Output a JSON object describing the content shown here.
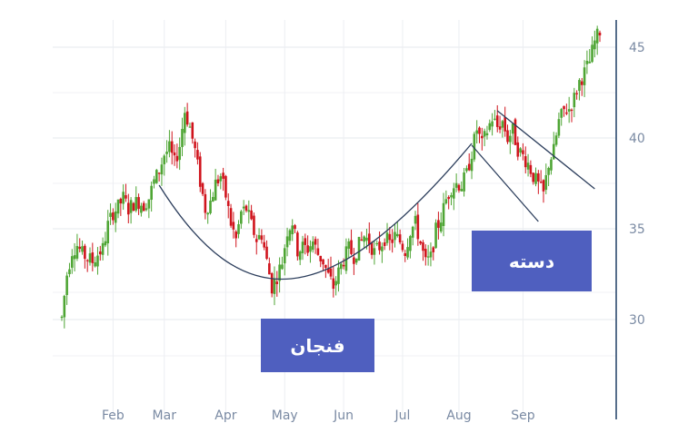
{
  "chart_data": {
    "type": "candlestick",
    "title": "",
    "xlabel": "",
    "ylabel": "",
    "ylim": [
      26,
      46.5
    ],
    "y_ticks": [
      30,
      35,
      40,
      45
    ],
    "x_ticks": [
      "Feb",
      "Mar",
      "Apr",
      "May",
      "Jun",
      "Jul",
      "Aug",
      "Sep"
    ],
    "grid": true,
    "y_axis_side": "right",
    "up_color": "#4ea534",
    "down_color": "#d0141d",
    "close_path": [
      [
        0,
        30.1
      ],
      [
        2,
        32.5
      ],
      [
        4,
        33.8
      ],
      [
        6,
        34.1
      ],
      [
        8,
        33.6
      ],
      [
        10,
        33.4
      ],
      [
        12,
        33.2
      ],
      [
        14,
        33.6
      ],
      [
        16,
        33.9
      ],
      [
        18,
        35.2
      ],
      [
        20,
        35.9
      ],
      [
        22,
        36.2
      ],
      [
        24,
        36.7
      ],
      [
        26,
        36.1
      ],
      [
        28,
        36.4
      ],
      [
        30,
        36.5
      ],
      [
        32,
        36.3
      ],
      [
        34,
        36.7
      ],
      [
        36,
        37.6
      ],
      [
        38,
        38.2
      ],
      [
        40,
        39.1
      ],
      [
        42,
        39.4
      ],
      [
        44,
        38.6
      ],
      [
        46,
        39.6
      ],
      [
        48,
        41.5
      ],
      [
        50,
        40.6
      ],
      [
        52,
        39.3
      ],
      [
        54,
        37.6
      ],
      [
        56,
        36.1
      ],
      [
        58,
        36.5
      ],
      [
        60,
        37.5
      ],
      [
        62,
        37.9
      ],
      [
        64,
        36.8
      ],
      [
        66,
        35.3
      ],
      [
        68,
        34.4
      ],
      [
        70,
        35.9
      ],
      [
        72,
        36.1
      ],
      [
        74,
        35.2
      ],
      [
        76,
        34.4
      ],
      [
        78,
        34.7
      ],
      [
        80,
        33.2
      ],
      [
        82,
        31.8
      ],
      [
        84,
        32.4
      ],
      [
        86,
        33.2
      ],
      [
        88,
        34.9
      ],
      [
        90,
        35.4
      ],
      [
        92,
        33.8
      ],
      [
        94,
        34.0
      ],
      [
        96,
        33.9
      ],
      [
        98,
        34.3
      ],
      [
        100,
        33.6
      ],
      [
        102,
        33.2
      ],
      [
        104,
        32.4
      ],
      [
        106,
        31.8
      ],
      [
        108,
        32.6
      ],
      [
        110,
        33.3
      ],
      [
        112,
        33.9
      ],
      [
        114,
        33.5
      ],
      [
        116,
        34.1
      ],
      [
        118,
        34.6
      ],
      [
        120,
        34.3
      ],
      [
        122,
        33.7
      ],
      [
        124,
        34.0
      ],
      [
        126,
        34.5
      ],
      [
        128,
        34.2
      ],
      [
        130,
        34.6
      ],
      [
        132,
        34.3
      ],
      [
        134,
        33.8
      ],
      [
        136,
        34.9
      ],
      [
        138,
        35.3
      ],
      [
        140,
        34.2
      ],
      [
        142,
        33.1
      ],
      [
        144,
        33.4
      ],
      [
        146,
        34.9
      ],
      [
        148,
        35.6
      ],
      [
        150,
        36.6
      ],
      [
        152,
        37.3
      ],
      [
        154,
        37.5
      ],
      [
        156,
        37.4
      ],
      [
        158,
        38.0
      ],
      [
        160,
        39.2
      ],
      [
        162,
        40.5
      ],
      [
        164,
        39.6
      ],
      [
        166,
        40.4
      ],
      [
        168,
        41.1
      ],
      [
        170,
        40.6
      ],
      [
        172,
        40.9
      ],
      [
        174,
        40.0
      ],
      [
        176,
        40.4
      ],
      [
        178,
        39.4
      ],
      [
        180,
        39.0
      ],
      [
        182,
        38.6
      ],
      [
        184,
        37.9
      ],
      [
        186,
        37.4
      ],
      [
        188,
        36.9
      ],
      [
        190,
        38.6
      ],
      [
        192,
        39.3
      ],
      [
        194,
        40.9
      ],
      [
        196,
        41.5
      ],
      [
        198,
        41.6
      ],
      [
        200,
        42.2
      ],
      [
        202,
        43.1
      ],
      [
        204,
        43.6
      ],
      [
        206,
        44.2
      ],
      [
        208,
        45.3
      ],
      [
        210,
        45.9
      ]
    ],
    "x_extent": [
      0,
      210
    ],
    "tick_positions": [
      20,
      40,
      64,
      87,
      110,
      133,
      155,
      180
    ],
    "annotations": [
      {
        "type": "curve",
        "label": "فنجان",
        "points": [
          [
            38,
            37.4
          ],
          [
            70,
            30.2
          ],
          [
            103,
            30.1
          ],
          [
            160,
            39.7
          ]
        ]
      },
      {
        "type": "channel",
        "label": "دسته",
        "upper": [
          [
            170,
            41.5
          ],
          [
            208,
            37.2
          ]
        ],
        "lower": [
          [
            160,
            39.6
          ],
          [
            186,
            35.4
          ]
        ]
      }
    ]
  },
  "labels": {
    "cup": "فنجان",
    "handle": "دسته"
  }
}
